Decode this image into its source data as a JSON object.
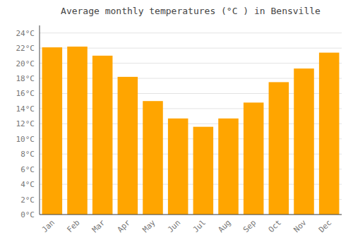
{
  "chart_data": {
    "type": "bar",
    "title": "Average monthly temperatures (°C ) in Bensville",
    "categories": [
      "Jan",
      "Feb",
      "Mar",
      "Apr",
      "May",
      "Jun",
      "Jul",
      "Aug",
      "Sep",
      "Oct",
      "Nov",
      "Dec"
    ],
    "values": [
      22.1,
      22.2,
      21.0,
      18.2,
      15.0,
      12.7,
      11.6,
      12.7,
      14.8,
      17.5,
      19.3,
      21.4
    ],
    "color": "#FFA500",
    "ylim": [
      0,
      25
    ],
    "yticks": [
      {
        "value": 0,
        "label": "0°C"
      },
      {
        "value": 2,
        "label": "2°C"
      },
      {
        "value": 4,
        "label": "4°C"
      },
      {
        "value": 6,
        "label": "6°C"
      },
      {
        "value": 8,
        "label": "8°C"
      },
      {
        "value": 10,
        "label": "10°C"
      },
      {
        "value": 12,
        "label": "12°C"
      },
      {
        "value": 14,
        "label": "14°C"
      },
      {
        "value": 16,
        "label": "16°C"
      },
      {
        "value": 18,
        "label": "18°C"
      },
      {
        "value": 20,
        "label": "20°C"
      },
      {
        "value": 22,
        "label": "22°C"
      },
      {
        "value": 24,
        "label": "24°C"
      }
    ],
    "grid": true
  }
}
